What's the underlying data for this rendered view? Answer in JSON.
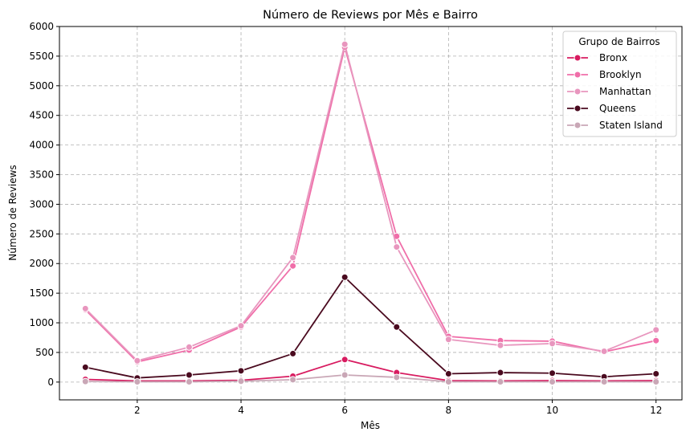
{
  "chart_data": {
    "type": "line",
    "title": "Número de Reviews por Mês e Bairro",
    "xlabel": "Mês",
    "ylabel": "Número de Reviews",
    "x": [
      1,
      2,
      3,
      4,
      5,
      6,
      7,
      8,
      9,
      10,
      11,
      12
    ],
    "xlim": [
      0.5,
      12.5
    ],
    "ylim": [
      -300,
      6000
    ],
    "xticks": [
      2,
      4,
      6,
      8,
      10,
      12
    ],
    "yticks": [
      0,
      500,
      1000,
      1500,
      2000,
      2500,
      3000,
      3500,
      4000,
      4500,
      5000,
      5500,
      6000
    ],
    "grid": true,
    "legend_title": "Grupo de Bairros",
    "legend_position": "top-right",
    "series": [
      {
        "name": "Bronx",
        "color": "#d81b60",
        "values": [
          45,
          20,
          20,
          30,
          100,
          380,
          160,
          25,
          20,
          25,
          20,
          25
        ]
      },
      {
        "name": "Brooklyn",
        "color": "#f06ea9",
        "values": [
          1220,
          340,
          540,
          930,
          1960,
          5650,
          2460,
          770,
          700,
          690,
          510,
          700
        ]
      },
      {
        "name": "Manhattan",
        "color": "#e896be",
        "values": [
          1240,
          360,
          590,
          950,
          2100,
          5700,
          2280,
          720,
          620,
          650,
          520,
          880
        ]
      },
      {
        "name": "Queens",
        "color": "#4a0a1f",
        "values": [
          250,
          70,
          120,
          190,
          480,
          1770,
          930,
          140,
          160,
          150,
          90,
          140
        ]
      },
      {
        "name": "Staten Island",
        "color": "#c9a7b6",
        "values": [
          10,
          5,
          5,
          15,
          40,
          120,
          80,
          5,
          5,
          5,
          5,
          5
        ]
      }
    ]
  }
}
